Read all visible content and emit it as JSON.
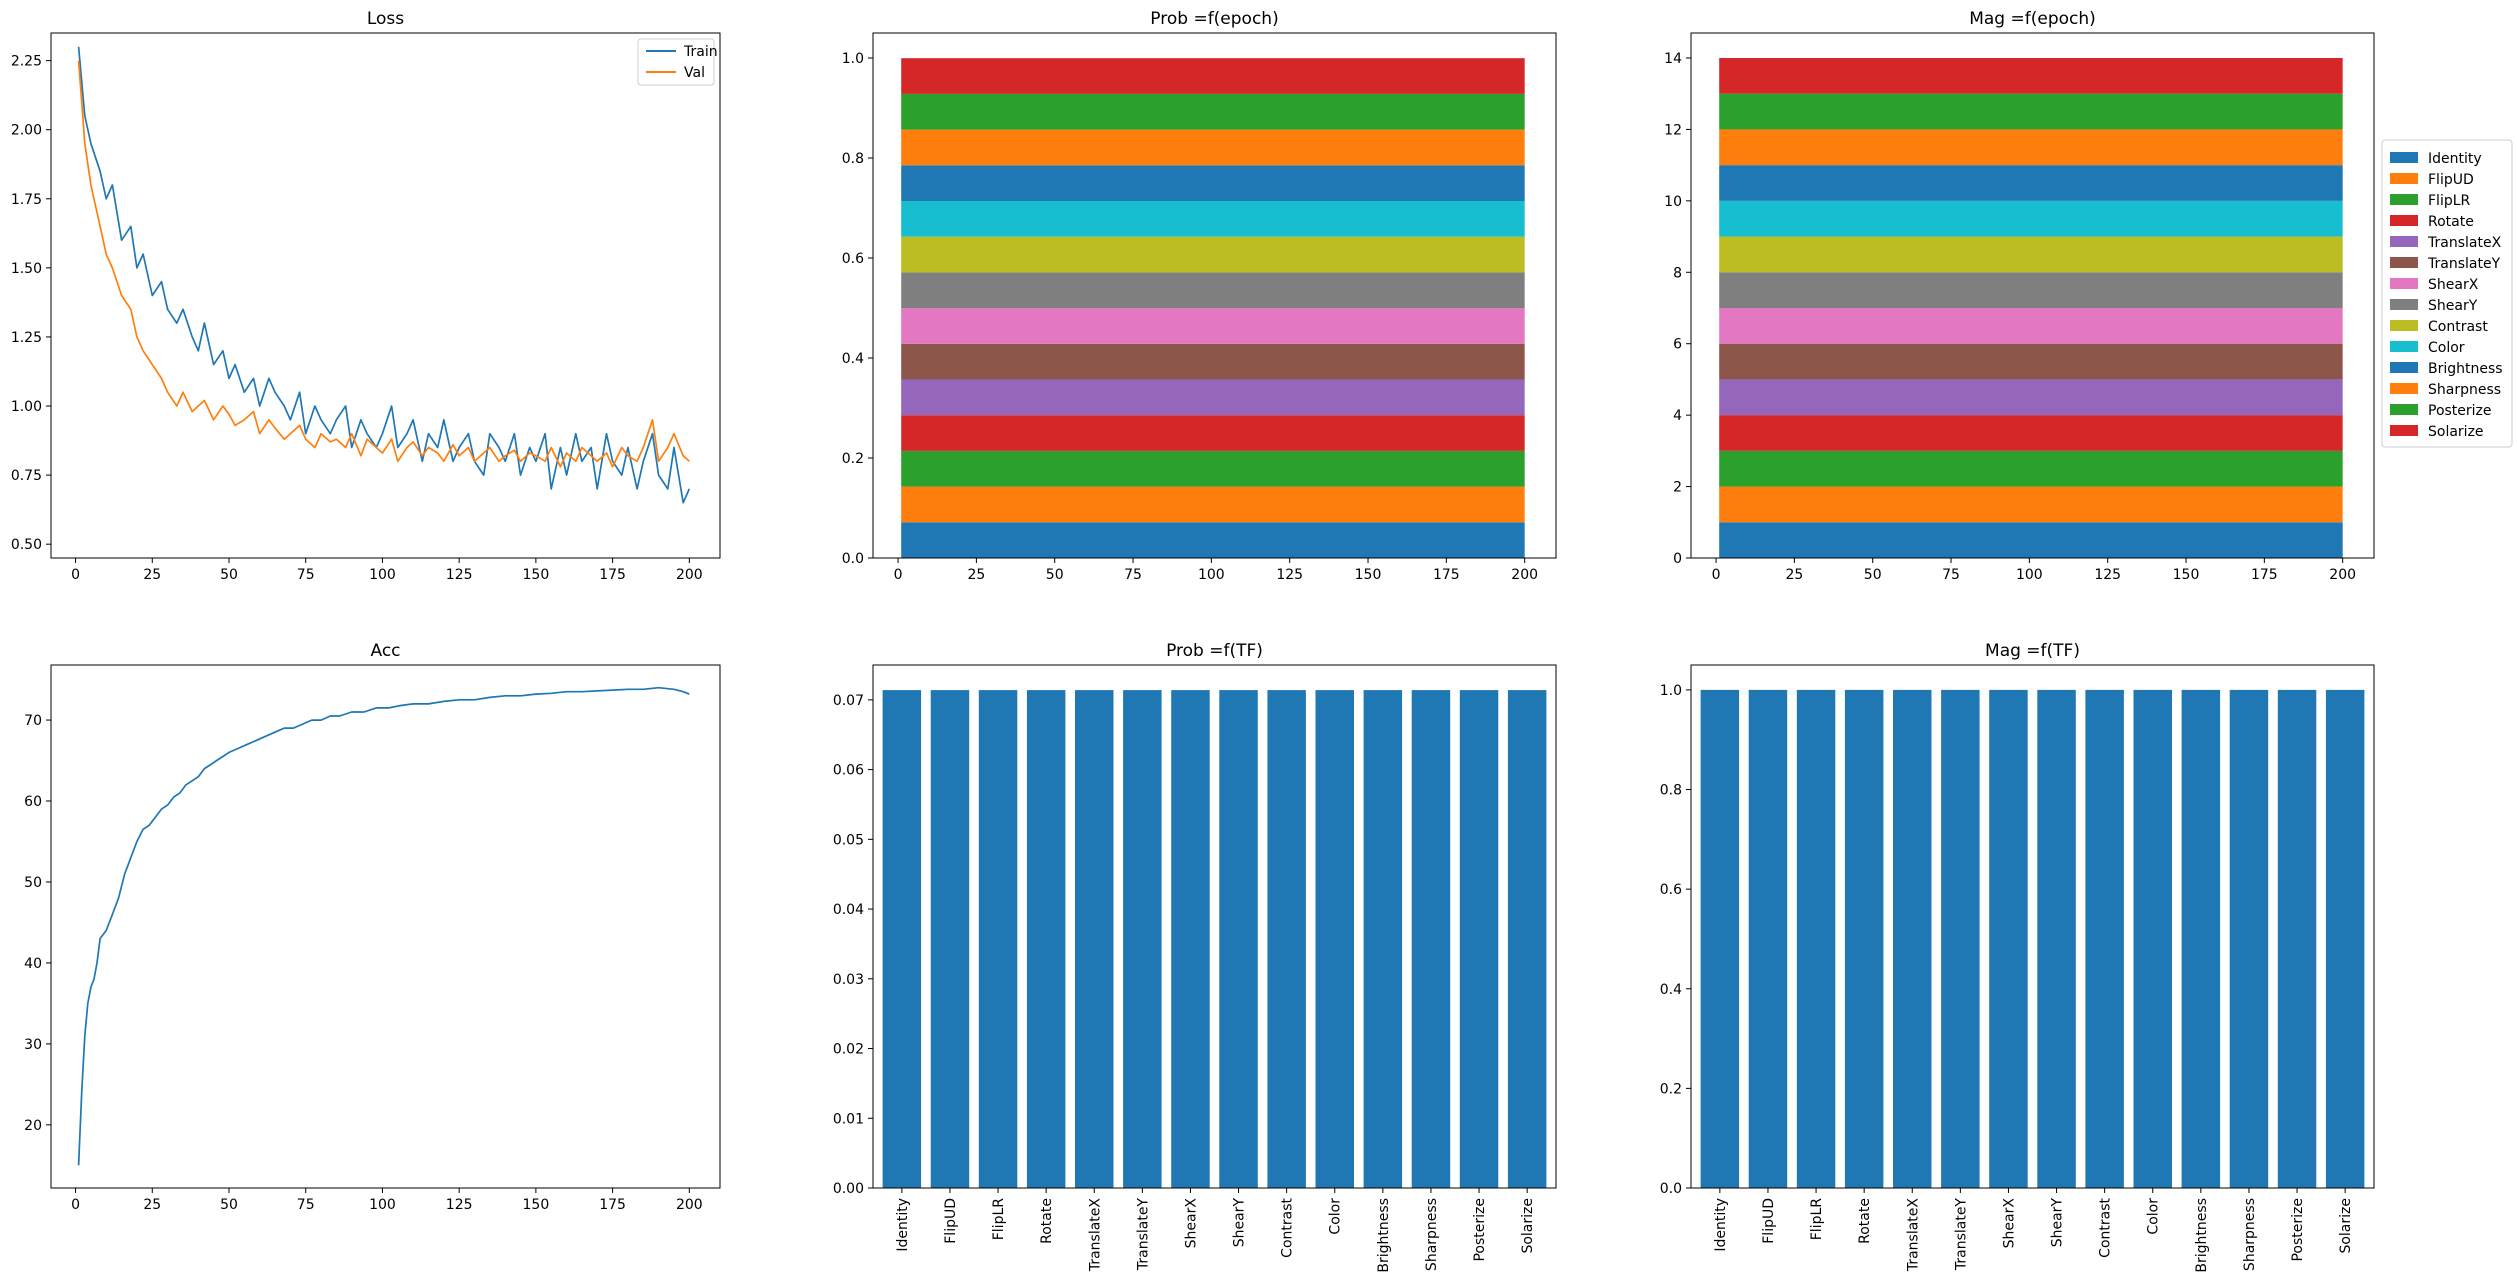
{
  "colors": {
    "tab": [
      "#1f77b4",
      "#ff7f0e",
      "#2ca02c",
      "#d62728",
      "#9467bd",
      "#8c564b",
      "#e377c2",
      "#7f7f7f",
      "#bcbd22",
      "#17becf",
      "#1f77b4",
      "#ff7f0e",
      "#2ca02c",
      "#d62728"
    ],
    "bar": "#1f77b4"
  },
  "chart_data": [
    {
      "id": "loss",
      "type": "line",
      "title": "Loss",
      "xlim": [
        -8,
        210
      ],
      "ylim": [
        0.45,
        2.35
      ],
      "xticks": [
        0,
        25,
        50,
        75,
        100,
        125,
        150,
        175,
        200
      ],
      "yticks": [
        0.5,
        0.75,
        1.0,
        1.25,
        1.5,
        1.75,
        2.0,
        2.25
      ],
      "ytick_labels": [
        "0.50",
        "0.75",
        "1.00",
        "1.25",
        "1.50",
        "1.75",
        "2.00",
        "2.25"
      ],
      "legend": "upper right",
      "series": [
        {
          "name": "Train",
          "color": "#1f77b4",
          "x": [
            1,
            3,
            5,
            8,
            10,
            12,
            15,
            18,
            20,
            22,
            25,
            28,
            30,
            33,
            35,
            38,
            40,
            42,
            45,
            48,
            50,
            52,
            55,
            58,
            60,
            63,
            65,
            68,
            70,
            73,
            75,
            78,
            80,
            83,
            85,
            88,
            90,
            93,
            95,
            98,
            100,
            103,
            105,
            108,
            110,
            113,
            115,
            118,
            120,
            123,
            125,
            128,
            130,
            133,
            135,
            138,
            140,
            143,
            145,
            148,
            150,
            153,
            155,
            158,
            160,
            163,
            165,
            168,
            170,
            173,
            175,
            178,
            180,
            183,
            185,
            188,
            190,
            193,
            195,
            198,
            200
          ],
          "y": [
            2.3,
            2.05,
            1.95,
            1.85,
            1.75,
            1.8,
            1.6,
            1.65,
            1.5,
            1.55,
            1.4,
            1.45,
            1.35,
            1.3,
            1.35,
            1.25,
            1.2,
            1.3,
            1.15,
            1.2,
            1.1,
            1.15,
            1.05,
            1.1,
            1.0,
            1.1,
            1.05,
            1.0,
            0.95,
            1.05,
            0.9,
            1.0,
            0.95,
            0.9,
            0.95,
            1.0,
            0.85,
            0.95,
            0.9,
            0.85,
            0.9,
            1.0,
            0.85,
            0.9,
            0.95,
            0.8,
            0.9,
            0.85,
            0.95,
            0.8,
            0.85,
            0.9,
            0.8,
            0.75,
            0.9,
            0.85,
            0.8,
            0.9,
            0.75,
            0.85,
            0.8,
            0.9,
            0.7,
            0.85,
            0.75,
            0.9,
            0.8,
            0.85,
            0.7,
            0.9,
            0.8,
            0.75,
            0.85,
            0.7,
            0.8,
            0.9,
            0.75,
            0.7,
            0.85,
            0.65,
            0.7
          ]
        },
        {
          "name": "Val",
          "color": "#ff7f0e",
          "x": [
            1,
            3,
            5,
            8,
            10,
            12,
            15,
            18,
            20,
            22,
            25,
            28,
            30,
            33,
            35,
            38,
            40,
            42,
            45,
            48,
            50,
            52,
            55,
            58,
            60,
            63,
            65,
            68,
            70,
            73,
            75,
            78,
            80,
            83,
            85,
            88,
            90,
            93,
            95,
            98,
            100,
            103,
            105,
            108,
            110,
            113,
            115,
            118,
            120,
            123,
            125,
            128,
            130,
            133,
            135,
            138,
            140,
            143,
            145,
            148,
            150,
            153,
            155,
            158,
            160,
            163,
            165,
            168,
            170,
            173,
            175,
            178,
            180,
            183,
            185,
            188,
            190,
            193,
            195,
            198,
            200
          ],
          "y": [
            2.25,
            1.95,
            1.8,
            1.65,
            1.55,
            1.5,
            1.4,
            1.35,
            1.25,
            1.2,
            1.15,
            1.1,
            1.05,
            1.0,
            1.05,
            0.98,
            1.0,
            1.02,
            0.95,
            1.0,
            0.97,
            0.93,
            0.95,
            0.98,
            0.9,
            0.95,
            0.92,
            0.88,
            0.9,
            0.93,
            0.88,
            0.85,
            0.9,
            0.87,
            0.88,
            0.85,
            0.9,
            0.82,
            0.88,
            0.85,
            0.83,
            0.88,
            0.8,
            0.85,
            0.87,
            0.82,
            0.85,
            0.83,
            0.8,
            0.86,
            0.82,
            0.85,
            0.8,
            0.83,
            0.85,
            0.8,
            0.82,
            0.84,
            0.8,
            0.83,
            0.82,
            0.8,
            0.85,
            0.78,
            0.83,
            0.8,
            0.85,
            0.82,
            0.8,
            0.83,
            0.78,
            0.85,
            0.82,
            0.8,
            0.85,
            0.95,
            0.8,
            0.85,
            0.9,
            0.82,
            0.8
          ]
        }
      ]
    },
    {
      "id": "prob_epoch",
      "type": "area",
      "title": "Prob =f(epoch)",
      "xlim": [
        -8,
        210
      ],
      "ylim": [
        0,
        1.05
      ],
      "xticks": [
        0,
        25,
        50,
        75,
        100,
        125,
        150,
        175,
        200
      ],
      "yticks": [
        0.0,
        0.2,
        0.4,
        0.6,
        0.8,
        1.0
      ],
      "ytick_labels": [
        "0.0",
        "0.2",
        "0.4",
        "0.6",
        "0.8",
        "1.0"
      ],
      "x_range": [
        1,
        200
      ],
      "stack_values": [
        0.0714,
        0.0714,
        0.0714,
        0.0714,
        0.0714,
        0.0714,
        0.0714,
        0.0714,
        0.0714,
        0.0714,
        0.0714,
        0.0714,
        0.0714,
        0.0714
      ]
    },
    {
      "id": "mag_epoch",
      "type": "area",
      "title": "Mag =f(epoch)",
      "xlim": [
        -8,
        210
      ],
      "ylim": [
        0,
        14.7
      ],
      "xticks": [
        0,
        25,
        50,
        75,
        100,
        125,
        150,
        175,
        200
      ],
      "yticks": [
        0,
        2,
        4,
        6,
        8,
        10,
        12,
        14
      ],
      "ytick_labels": [
        "0",
        "2",
        "4",
        "6",
        "8",
        "10",
        "12",
        "14"
      ],
      "x_range": [
        1,
        200
      ],
      "stack_values": [
        1,
        1,
        1,
        1,
        1,
        1,
        1,
        1,
        1,
        1,
        1,
        1,
        1,
        1
      ],
      "legend": "right, outside"
    },
    {
      "id": "acc",
      "type": "line",
      "title": "Acc",
      "xlim": [
        -8,
        210
      ],
      "ylim": [
        12.2,
        76.8
      ],
      "xticks": [
        0,
        25,
        50,
        75,
        100,
        125,
        150,
        175,
        200
      ],
      "yticks": [
        20,
        30,
        40,
        50,
        60,
        70
      ],
      "ytick_labels": [
        "20",
        "30",
        "40",
        "50",
        "60",
        "70"
      ],
      "series": [
        {
          "name": "",
          "color": "#1f77b4",
          "x": [
            1,
            2,
            3,
            4,
            5,
            6,
            7,
            8,
            10,
            12,
            14,
            16,
            18,
            20,
            22,
            24,
            26,
            28,
            30,
            32,
            34,
            36,
            38,
            40,
            42,
            44,
            46,
            48,
            50,
            53,
            56,
            59,
            62,
            65,
            68,
            71,
            74,
            77,
            80,
            83,
            86,
            90,
            94,
            98,
            102,
            106,
            110,
            115,
            120,
            125,
            130,
            135,
            140,
            145,
            150,
            155,
            160,
            165,
            170,
            175,
            180,
            185,
            190,
            195,
            198,
            200
          ],
          "y": [
            15,
            24,
            31,
            35,
            37,
            38,
            40,
            43,
            44,
            46,
            48,
            51,
            53,
            55,
            56.5,
            57,
            58,
            59,
            59.5,
            60.5,
            61,
            62,
            62.5,
            63,
            64,
            64.5,
            65,
            65.5,
            66,
            66.5,
            67,
            67.5,
            68,
            68.5,
            69,
            69,
            69.5,
            70,
            70,
            70.5,
            70.5,
            71,
            71,
            71.5,
            71.5,
            71.8,
            72,
            72,
            72.3,
            72.5,
            72.5,
            72.8,
            73,
            73,
            73.2,
            73.3,
            73.5,
            73.5,
            73.6,
            73.7,
            73.8,
            73.8,
            74,
            73.8,
            73.5,
            73.2
          ]
        }
      ]
    },
    {
      "id": "prob_tf",
      "type": "bar",
      "title": "Prob =f(TF)",
      "ylim": [
        0,
        0.075
      ],
      "yticks": [
        0.0,
        0.01,
        0.02,
        0.03,
        0.04,
        0.05,
        0.06,
        0.07
      ],
      "ytick_labels": [
        "0.00",
        "0.01",
        "0.02",
        "0.03",
        "0.04",
        "0.05",
        "0.06",
        "0.07"
      ],
      "values": [
        0.0714,
        0.0714,
        0.0714,
        0.0714,
        0.0714,
        0.0714,
        0.0714,
        0.0714,
        0.0714,
        0.0714,
        0.0714,
        0.0714,
        0.0714,
        0.0714
      ]
    },
    {
      "id": "mag_tf",
      "type": "bar",
      "title": "Mag =f(TF)",
      "ylim": [
        0,
        1.05
      ],
      "yticks": [
        0.0,
        0.2,
        0.4,
        0.6,
        0.8,
        1.0
      ],
      "ytick_labels": [
        "0.0",
        "0.2",
        "0.4",
        "0.6",
        "0.8",
        "1.0"
      ],
      "values": [
        1,
        1,
        1,
        1,
        1,
        1,
        1,
        1,
        1,
        1,
        1,
        1,
        1,
        1
      ]
    }
  ],
  "tf_names": [
    "Identity",
    "FlipUD",
    "FlipLR",
    "Rotate",
    "TranslateX",
    "TranslateY",
    "ShearX",
    "ShearY",
    "Contrast",
    "Color",
    "Brightness",
    "Sharpness",
    "Posterize",
    "Solarize"
  ]
}
